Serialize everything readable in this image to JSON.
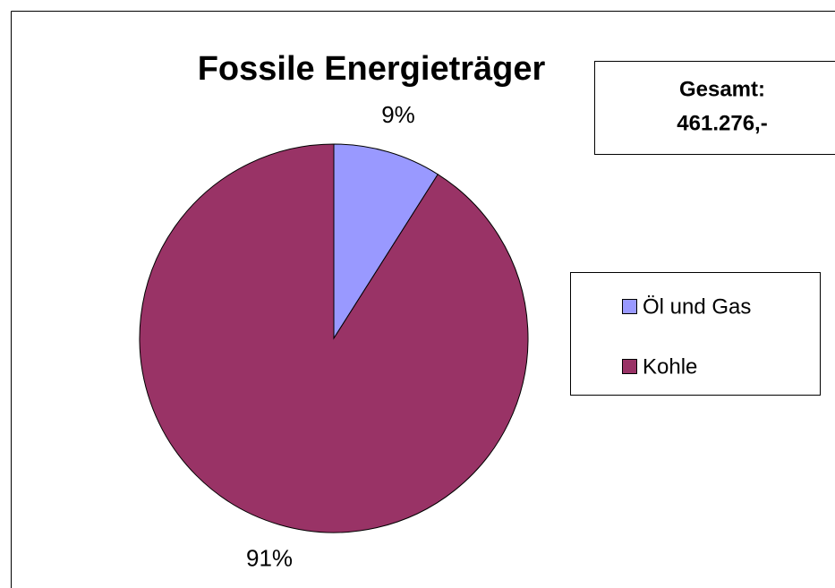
{
  "chart_data": {
    "type": "pie",
    "title": "Fossile Energieträger",
    "categories": [
      "Öl und Gas",
      "Kohle"
    ],
    "values": [
      9,
      91
    ],
    "value_labels": [
      "9%",
      "91%"
    ],
    "colors": [
      "#9999ff",
      "#993366"
    ],
    "annotation": [
      "Gesamt:",
      "461.276,-"
    ],
    "legend": "right"
  }
}
